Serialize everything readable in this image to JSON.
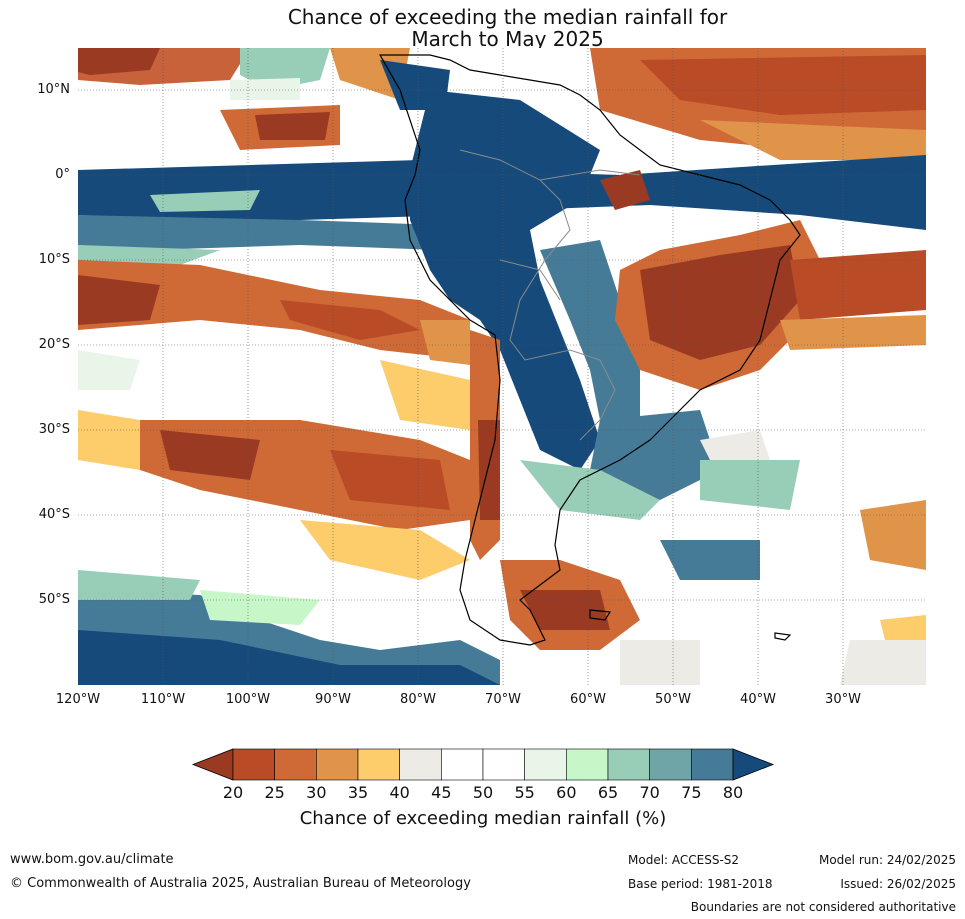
{
  "title": {
    "line1": "Chance of exceeding the median rainfall for",
    "line2": "March to May 2025"
  },
  "map": {
    "lat_labels": [
      "10°N",
      "0°",
      "10°S",
      "20°S",
      "30°S",
      "40°S",
      "50°S"
    ],
    "lon_labels": [
      "120°W",
      "110°W",
      "100°W",
      "90°W",
      "80°W",
      "70°W",
      "60°W",
      "50°W",
      "40°W",
      "30°W"
    ],
    "colors": {
      "ocean_base": "#ffffff",
      "land_base": "#4a7f9c"
    }
  },
  "colorbar": {
    "label": "Chance of exceeding median rainfall (%)",
    "ticks": [
      "20",
      "25",
      "30",
      "35",
      "40",
      "45",
      "50",
      "55",
      "60",
      "65",
      "70",
      "75",
      "80"
    ],
    "colors": [
      "#9b3a22",
      "#b94b27",
      "#cf6a36",
      "#e0944a",
      "#fdcc6b",
      "#ecebe6",
      "#ffffff",
      "#ffffff",
      "#e9f5e8",
      "#c7f7c8",
      "#98cdb7",
      "#6fa5a6",
      "#467b98",
      "#154a7a"
    ],
    "under_color": "#9b3a22",
    "over_color": "#154a7a"
  },
  "footer": {
    "website": "www.bom.gov.au/climate",
    "copyright": "© Commonwealth of Australia 2025, Australian Bureau of Meteorology",
    "model": "Model: ACCESS-S2",
    "base_period": "Base period: 1981-2018",
    "model_run": "Model run: 24/02/2025",
    "issued": "Issued: 26/02/2025",
    "boundaries_note": "Boundaries are not considered authoritative"
  }
}
